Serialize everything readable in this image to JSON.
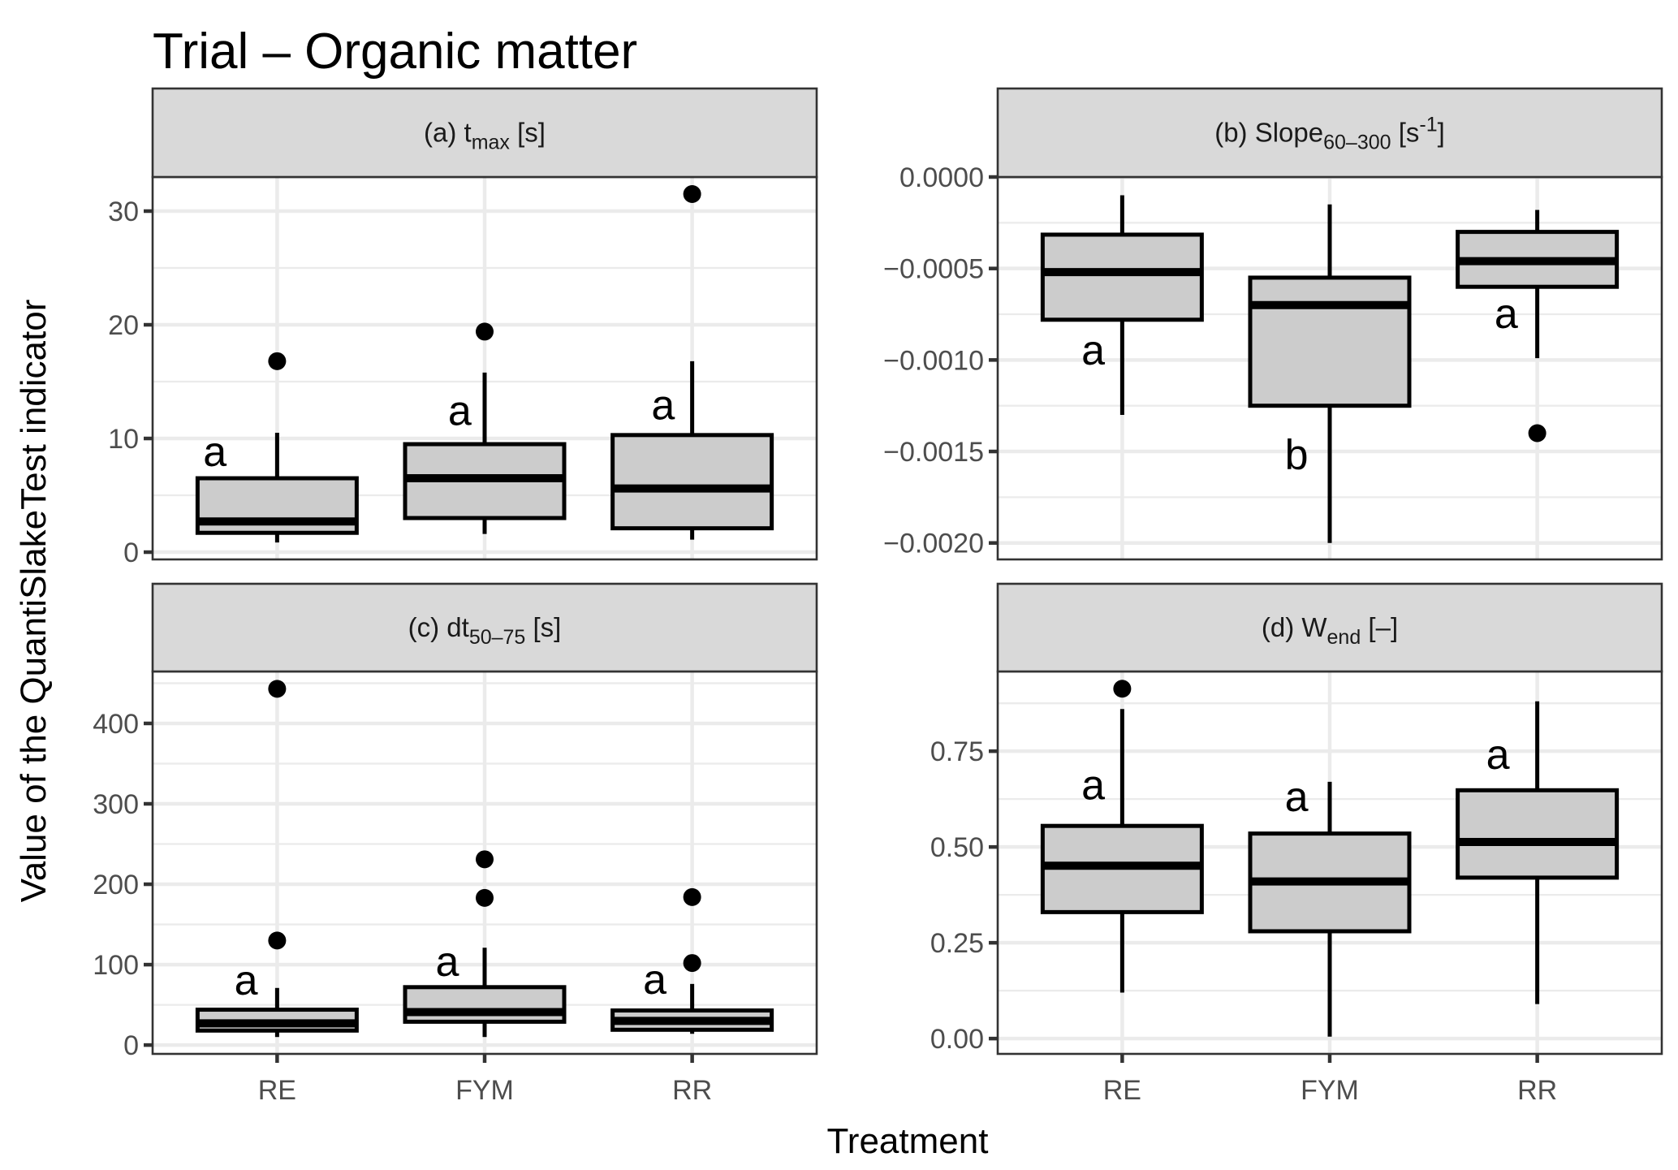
{
  "chart_data": {
    "type": "box",
    "title": "Trial – Organic matter",
    "xlabel": "Treatment",
    "ylabel": "Value of the QuantiSlakeTest indicator",
    "categories": [
      "RE",
      "FYM",
      "RR"
    ],
    "grid": true,
    "legend": "none",
    "fill_color": "#cccccc",
    "strip_color": "#d9d9d9",
    "panels": [
      {
        "id": "a",
        "label_prefix": "(a) t",
        "label_sub": "max",
        "label_suffix": " [s]",
        "ylim": [
          -0.64,
          33
        ],
        "major_ticks": [
          0,
          10,
          20,
          30
        ],
        "tick_labels": [
          "0",
          "10",
          "20",
          "30"
        ],
        "minor_ticks": [
          5,
          15,
          25
        ],
        "boxes": [
          {
            "category": "RE",
            "whisker_low": 0.85,
            "q1": 1.7,
            "median": 2.7,
            "q3": 6.5,
            "whisker_high": 10.5,
            "outliers": [
              16.8
            ],
            "letter": "a",
            "letter_pos": [
              -0.3,
              8.8
            ]
          },
          {
            "category": "FYM",
            "whisker_low": 1.6,
            "q1": 3.0,
            "median": 6.5,
            "q3": 9.5,
            "whisker_high": 15.8,
            "outliers": [
              19.4
            ],
            "letter": "a",
            "letter_pos": [
              -0.12,
              12.4
            ]
          },
          {
            "category": "RR",
            "whisker_low": 1.1,
            "q1": 2.1,
            "median": 5.6,
            "q3": 10.3,
            "whisker_high": 16.8,
            "outliers": [
              31.5
            ],
            "letter": "a",
            "letter_pos": [
              -0.14,
              12.9
            ]
          }
        ]
      },
      {
        "id": "b",
        "label_prefix": "(b) Slope",
        "label_sub": "60–300",
        "label_suffix": " [s",
        "label_sup": "-1",
        "label_end": "]",
        "ylim": [
          -0.00209,
          0.0
        ],
        "major_ticks": [
          0.0,
          -0.0005,
          -0.001,
          -0.0015,
          -0.002
        ],
        "tick_labels": [
          "0.0000",
          "−0.0005",
          "−0.0010",
          "−0.0015",
          "−0.0020"
        ],
        "minor_ticks": [
          -0.00025,
          -0.00075,
          -0.00125,
          -0.00175
        ],
        "boxes": [
          {
            "category": "RE",
            "whisker_low": -0.0013,
            "q1": -0.00078,
            "median": -0.00052,
            "q3": -0.000315,
            "whisker_high": -0.0001,
            "outliers": [],
            "letter": "a",
            "letter_pos": [
              -0.14,
              -0.00095
            ]
          },
          {
            "category": "FYM",
            "whisker_low": -0.002,
            "q1": -0.00125,
            "median": -0.0007,
            "q3": -0.00055,
            "whisker_high": -0.00015,
            "outliers": [],
            "letter": "b",
            "letter_pos": [
              -0.16,
              -0.00152
            ]
          },
          {
            "category": "RR",
            "whisker_low": -0.00099,
            "q1": -0.0006,
            "median": -0.00046,
            "q3": -0.0003,
            "whisker_high": -0.00018,
            "outliers": [
              -0.0014
            ],
            "letter": "a",
            "letter_pos": [
              -0.15,
              -0.00075
            ]
          }
        ]
      },
      {
        "id": "c",
        "label_prefix": "(c) dt",
        "label_sub": "50–75",
        "label_suffix": " [s]",
        "ylim": [
          -11,
          464.6
        ],
        "major_ticks": [
          0,
          100,
          200,
          300,
          400
        ],
        "tick_labels": [
          "0",
          "100",
          "200",
          "300",
          "400"
        ],
        "minor_ticks": [
          50,
          150,
          250,
          350,
          450
        ],
        "boxes": [
          {
            "category": "RE",
            "whisker_low": 10,
            "q1": 18,
            "median": 27,
            "q3": 44,
            "whisker_high": 71,
            "outliers": [
              130,
              443
            ],
            "letter": "a",
            "letter_pos": [
              -0.15,
              80
            ]
          },
          {
            "category": "FYM",
            "whisker_low": 10,
            "q1": 29,
            "median": 41,
            "q3": 72,
            "whisker_high": 121,
            "outliers": [
              183,
              231
            ],
            "letter": "a",
            "letter_pos": [
              -0.18,
              103
            ]
          },
          {
            "category": "RR",
            "whisker_low": 14,
            "q1": 19,
            "median": 30,
            "q3": 43,
            "whisker_high": 76,
            "outliers": [
              102,
              184
            ],
            "letter": "a",
            "letter_pos": [
              -0.18,
              81
            ]
          }
        ]
      },
      {
        "id": "d",
        "label_prefix": "(d) W",
        "label_sub": "end",
        "label_suffix": " [–]",
        "ylim": [
          -0.04,
          0.958
        ],
        "major_ticks": [
          0.0,
          0.25,
          0.5,
          0.75
        ],
        "tick_labels": [
          "0.00",
          "0.25",
          "0.50",
          "0.75"
        ],
        "minor_ticks": [
          0.125,
          0.375,
          0.625,
          0.875
        ],
        "boxes": [
          {
            "category": "RE",
            "whisker_low": 0.12,
            "q1": 0.33,
            "median": 0.451,
            "q3": 0.555,
            "whisker_high": 0.86,
            "outliers": [
              0.913
            ],
            "letter": "a",
            "letter_pos": [
              -0.14,
              0.66
            ]
          },
          {
            "category": "FYM",
            "whisker_low": 0.005,
            "q1": 0.28,
            "median": 0.41,
            "q3": 0.535,
            "whisker_high": 0.67,
            "outliers": [],
            "letter": "a",
            "letter_pos": [
              -0.16,
              0.63
            ]
          },
          {
            "category": "RR",
            "whisker_low": 0.09,
            "q1": 0.42,
            "median": 0.513,
            "q3": 0.648,
            "whisker_high": 0.88,
            "outliers": [],
            "letter": "a",
            "letter_pos": [
              -0.19,
              0.74
            ]
          }
        ]
      }
    ]
  }
}
